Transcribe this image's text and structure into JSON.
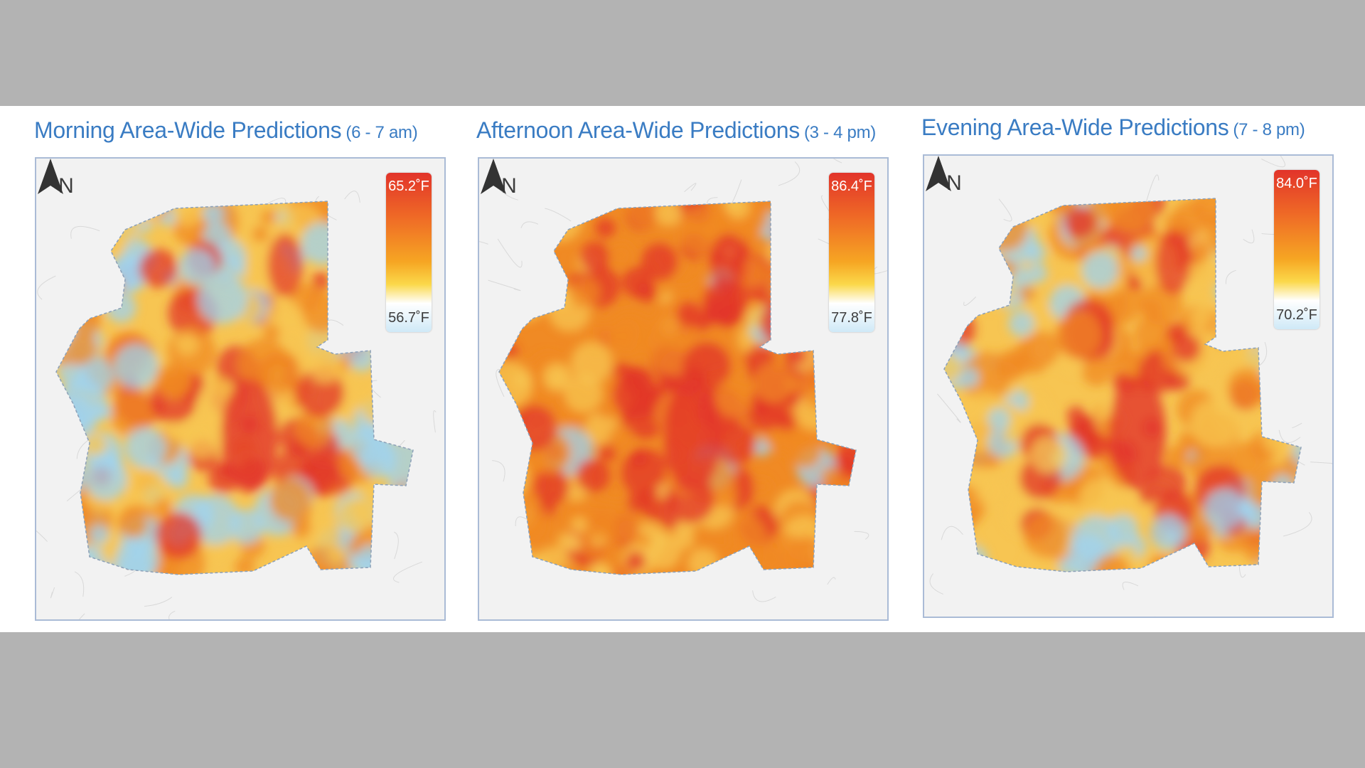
{
  "panels": [
    {
      "id": "morning",
      "title": "Morning Area-Wide Predictions",
      "time_range": "(6 - 7 am)",
      "north_label": "N",
      "legend": {
        "max": "65.2˚F",
        "min": "56.7˚F"
      },
      "heat_intensity": 0.35
    },
    {
      "id": "afternoon",
      "title": "Afternoon Area-Wide Predictions",
      "time_range": "(3 - 4 pm)",
      "north_label": "N",
      "legend": {
        "max": "86.4˚F",
        "min": "77.8˚F"
      },
      "heat_intensity": 0.8
    },
    {
      "id": "evening",
      "title": "Evening Area-Wide Predictions",
      "time_range": "(7 - 8 pm)",
      "north_label": "N",
      "legend": {
        "max": "84.0˚F",
        "min": "70.2˚F"
      },
      "heat_intensity": 0.45
    }
  ],
  "colors": {
    "title": "#3a7cc3",
    "hot": "#e2342a",
    "warm": "#f08a24",
    "mild": "#f7c552",
    "cool": "#9fd3f0",
    "frame": "#aabbd6"
  }
}
